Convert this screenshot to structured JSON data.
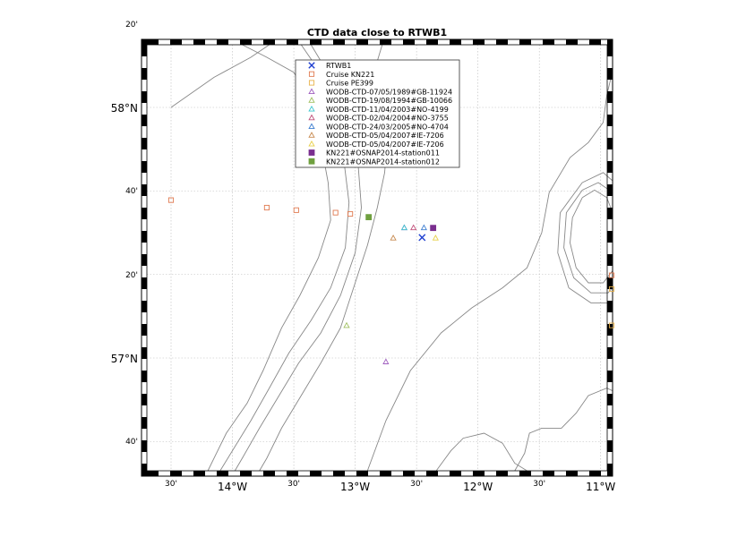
{
  "title": "CTD data close to RTWB1",
  "map": {
    "lon_range": [
      -14.5,
      -10.75
    ],
    "lat_range": [
      56.55,
      58.25
    ],
    "lon_ticks": [
      {
        "value": -14.5,
        "label": "30'",
        "major": false
      },
      {
        "value": -14.0,
        "label": "14°W",
        "major": true
      },
      {
        "value": -13.5,
        "label": "30'",
        "major": false
      },
      {
        "value": -13.0,
        "label": "13°W",
        "major": true
      },
      {
        "value": -12.5,
        "label": "30'",
        "major": false
      },
      {
        "value": -12.0,
        "label": "12°W",
        "major": true
      },
      {
        "value": -11.5,
        "label": "30'",
        "major": false
      },
      {
        "value": -11.0,
        "label": "11°W",
        "major": true
      }
    ],
    "lat_ticks": [
      {
        "value": 58.333,
        "label": "20'",
        "major": false
      },
      {
        "value": 58.0,
        "label": "58°N",
        "major": true
      },
      {
        "value": 57.667,
        "label": "40'",
        "major": false
      },
      {
        "value": 57.333,
        "label": "20'",
        "major": false
      },
      {
        "value": 57.0,
        "label": "57°N",
        "major": true
      },
      {
        "value": 56.667,
        "label": "40'",
        "major": false
      }
    ]
  },
  "legend": [
    {
      "label": "RTWB1",
      "marker": "x",
      "color": "#1f3fd0"
    },
    {
      "label": "Cruise KN221",
      "marker": "square-open",
      "color": "#e07a50"
    },
    {
      "label": "Cruise PE399",
      "marker": "square-open",
      "color": "#e8b24a"
    },
    {
      "label": "WODB-CTD-07/05/1989#GB-11924",
      "marker": "triangle-open",
      "color": "#a05fbf"
    },
    {
      "label": "WODB-CTD-19/08/1994#GB-10066",
      "marker": "triangle-open",
      "color": "#9fbf5f"
    },
    {
      "label": "WODB-CTD-11/04/2003#NO-4199",
      "marker": "triangle-open",
      "color": "#3fc7d0"
    },
    {
      "label": "WODB-CTD-02/04/2004#NO-3755",
      "marker": "triangle-open",
      "color": "#c0507a"
    },
    {
      "label": "WODB-CTD-24/03/2005#NO-4704",
      "marker": "triangle-open",
      "color": "#3f7fd0"
    },
    {
      "label": "WODB-CTD-05/04/2007#IE-7206",
      "marker": "triangle-open",
      "color": "#c78a50"
    },
    {
      "label": "WODB-CTD-05/04/2007#IE-7206",
      "marker": "triangle-open",
      "color": "#e8d04a"
    },
    {
      "label": "KN221#OSNAP2014-station011",
      "marker": "square-filled",
      "color": "#7a2f8f"
    },
    {
      "label": "KN221#OSNAP2014-station012",
      "marker": "square-filled",
      "color": "#6fa03f"
    }
  ],
  "points": [
    {
      "series": "RTWB1",
      "marker": "x",
      "color": "#1f3fd0",
      "lon": -12.455,
      "lat": 57.481
    },
    {
      "series": "Cruise KN221",
      "marker": "square-open",
      "color": "#e07a50",
      "lon": -14.5,
      "lat": 57.63
    },
    {
      "series": "Cruise KN221",
      "marker": "square-open",
      "color": "#e07a50",
      "lon": -13.72,
      "lat": 57.6
    },
    {
      "series": "Cruise KN221",
      "marker": "square-open",
      "color": "#e07a50",
      "lon": -13.48,
      "lat": 57.59
    },
    {
      "series": "Cruise KN221",
      "marker": "square-open",
      "color": "#e07a50",
      "lon": -13.16,
      "lat": 57.58
    },
    {
      "series": "Cruise KN221",
      "marker": "square-open",
      "color": "#e07a50",
      "lon": -13.04,
      "lat": 57.575
    },
    {
      "series": "Cruise KN221",
      "marker": "square-open",
      "color": "#e07a50",
      "lon": -10.77,
      "lat": 57.33
    },
    {
      "series": "Cruise PE399",
      "marker": "square-open",
      "color": "#e8b24a",
      "lon": -10.77,
      "lat": 57.275
    },
    {
      "series": "Cruise PE399",
      "marker": "square-open",
      "color": "#e8b24a",
      "lon": -10.77,
      "lat": 57.13
    },
    {
      "series": "WODB-CTD-07/05/1989#GB-11924",
      "marker": "triangle-open",
      "color": "#a05fbf",
      "lon": -12.6,
      "lat": 57.52
    },
    {
      "series": "WODB-CTD-07/05/1989#GB-11924",
      "marker": "triangle-open",
      "color": "#a05fbf",
      "lon": -12.75,
      "lat": 56.985
    },
    {
      "series": "WODB-CTD-19/08/1994#GB-10066",
      "marker": "triangle-open",
      "color": "#9fbf5f",
      "lon": -13.07,
      "lat": 57.13
    },
    {
      "series": "WODB-CTD-11/04/2003#NO-4199",
      "marker": "triangle-open",
      "color": "#3fc7d0",
      "lon": -12.6,
      "lat": 57.52
    },
    {
      "series": "WODB-CTD-02/04/2004#NO-3755",
      "marker": "triangle-open",
      "color": "#c0507a",
      "lon": -12.525,
      "lat": 57.52
    },
    {
      "series": "WODB-CTD-24/03/2005#NO-4704",
      "marker": "triangle-open",
      "color": "#3f7fd0",
      "lon": -12.44,
      "lat": 57.52
    },
    {
      "series": "WODB-CTD-05/04/2007#IE-7206",
      "marker": "triangle-open",
      "color": "#c78a50",
      "lon": -12.69,
      "lat": 57.479
    },
    {
      "series": "WODB-CTD-05/04/2007#IE-7206",
      "marker": "triangle-open",
      "color": "#e8d04a",
      "lon": -12.345,
      "lat": 57.479
    },
    {
      "series": "KN221#OSNAP2014-station011",
      "marker": "square-filled",
      "color": "#7a2f8f",
      "lon": -12.365,
      "lat": 57.519
    },
    {
      "series": "KN221#OSNAP2014-station012",
      "marker": "square-filled",
      "color": "#6fa03f",
      "lon": -12.89,
      "lat": 57.562
    }
  ],
  "contours": [
    [
      [
        -14.5,
        58.0
      ],
      [
        -14.15,
        58.12
      ],
      [
        -13.85,
        58.2
      ],
      [
        -13.7,
        58.25
      ]
    ],
    [
      [
        -13.92,
        58.25
      ],
      [
        -13.72,
        58.2
      ],
      [
        -13.5,
        58.14
      ],
      [
        -13.34,
        58.0
      ],
      [
        -13.28,
        57.86
      ],
      [
        -13.22,
        57.7
      ],
      [
        -13.2,
        57.55
      ],
      [
        -13.3,
        57.4
      ],
      [
        -13.45,
        57.25
      ],
      [
        -13.6,
        57.12
      ],
      [
        -13.75,
        56.95
      ],
      [
        -13.88,
        56.82
      ],
      [
        -14.05,
        56.7
      ],
      [
        -14.2,
        56.55
      ]
    ],
    [
      [
        -13.44,
        58.25
      ],
      [
        -13.3,
        58.15
      ],
      [
        -13.16,
        58.0
      ],
      [
        -13.1,
        57.82
      ],
      [
        -13.05,
        57.62
      ],
      [
        -13.08,
        57.44
      ],
      [
        -13.2,
        57.28
      ],
      [
        -13.36,
        57.15
      ],
      [
        -13.54,
        57.02
      ],
      [
        -13.7,
        56.88
      ],
      [
        -13.85,
        56.75
      ],
      [
        -14.0,
        56.63
      ],
      [
        -14.1,
        56.55
      ]
    ],
    [
      [
        -13.36,
        58.25
      ],
      [
        -13.2,
        58.12
      ],
      [
        -13.05,
        57.98
      ],
      [
        -12.98,
        57.8
      ],
      [
        -12.95,
        57.6
      ],
      [
        -13.0,
        57.42
      ],
      [
        -13.12,
        57.25
      ],
      [
        -13.28,
        57.1
      ],
      [
        -13.46,
        56.98
      ],
      [
        -13.62,
        56.85
      ],
      [
        -13.78,
        56.72
      ],
      [
        -13.92,
        56.6
      ],
      [
        -13.98,
        56.55
      ]
    ],
    [
      [
        -12.78,
        58.25
      ],
      [
        -12.86,
        58.12
      ],
      [
        -12.82,
        58.0
      ],
      [
        -12.74,
        57.86
      ],
      [
        -12.76,
        57.74
      ],
      [
        -12.82,
        57.6
      ],
      [
        -12.9,
        57.45
      ],
      [
        -13.0,
        57.3
      ],
      [
        -13.12,
        57.12
      ],
      [
        -13.28,
        56.98
      ],
      [
        -13.44,
        56.85
      ],
      [
        -13.6,
        56.72
      ],
      [
        -13.72,
        56.6
      ],
      [
        -13.78,
        56.55
      ]
    ],
    [
      [
        -12.34,
        56.55
      ],
      [
        -12.22,
        56.63
      ],
      [
        -12.12,
        56.68
      ],
      [
        -11.95,
        56.7
      ],
      [
        -11.8,
        56.66
      ],
      [
        -11.7,
        56.58
      ],
      [
        -11.6,
        56.55
      ]
    ],
    [
      [
        -11.7,
        56.55
      ],
      [
        -11.62,
        56.62
      ],
      [
        -11.58,
        56.7
      ],
      [
        -11.48,
        56.72
      ],
      [
        -11.32,
        56.72
      ],
      [
        -11.2,
        56.78
      ],
      [
        -11.1,
        56.85
      ],
      [
        -10.95,
        56.88
      ],
      [
        -10.82,
        56.85
      ],
      [
        -10.75,
        56.82
      ]
    ],
    [
      [
        -12.9,
        56.55
      ],
      [
        -12.75,
        56.75
      ],
      [
        -12.55,
        56.95
      ],
      [
        -12.3,
        57.1
      ],
      [
        -12.05,
        57.2
      ],
      [
        -11.8,
        57.28
      ],
      [
        -11.6,
        57.36
      ],
      [
        -11.48,
        57.5
      ],
      [
        -11.42,
        57.66
      ],
      [
        -11.25,
        57.8
      ],
      [
        -11.1,
        57.86
      ],
      [
        -10.98,
        57.94
      ],
      [
        -10.95,
        58.05
      ],
      [
        -10.9,
        58.15
      ],
      [
        -10.8,
        58.2
      ],
      [
        -10.75,
        58.22
      ]
    ],
    [
      [
        -11.15,
        57.64
      ],
      [
        -11.05,
        57.67
      ],
      [
        -10.95,
        57.64
      ],
      [
        -10.88,
        57.55
      ],
      [
        -10.86,
        57.45
      ],
      [
        -10.9,
        57.35
      ],
      [
        -10.98,
        57.3
      ],
      [
        -11.1,
        57.3
      ],
      [
        -11.2,
        57.36
      ],
      [
        -11.25,
        57.46
      ],
      [
        -11.23,
        57.56
      ],
      [
        -11.15,
        57.64
      ]
    ],
    [
      [
        -11.15,
        57.67
      ],
      [
        -11.02,
        57.7
      ],
      [
        -10.9,
        57.66
      ],
      [
        -10.82,
        57.56
      ],
      [
        -10.8,
        57.44
      ],
      [
        -10.84,
        57.32
      ],
      [
        -10.94,
        57.26
      ],
      [
        -11.08,
        57.26
      ],
      [
        -11.22,
        57.32
      ],
      [
        -11.3,
        57.44
      ],
      [
        -11.28,
        57.58
      ],
      [
        -11.15,
        57.67
      ]
    ],
    [
      [
        -11.15,
        57.7
      ],
      [
        -10.98,
        57.74
      ],
      [
        -10.84,
        57.68
      ],
      [
        -10.76,
        57.56
      ],
      [
        -10.75,
        57.42
      ],
      [
        -10.78,
        57.3
      ],
      [
        -10.9,
        57.22
      ],
      [
        -11.08,
        57.22
      ],
      [
        -11.26,
        57.28
      ],
      [
        -11.35,
        57.42
      ],
      [
        -11.33,
        57.58
      ],
      [
        -11.15,
        57.7
      ]
    ]
  ]
}
